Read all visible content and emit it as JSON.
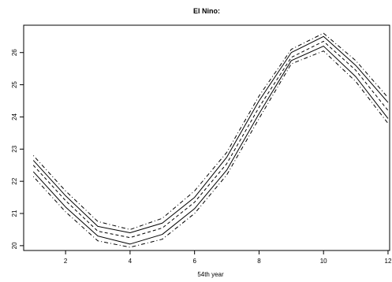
{
  "chart_data": {
    "type": "line",
    "title": "El Nino:",
    "xlabel": "54th year",
    "ylabel": "",
    "x": [
      1,
      2,
      3,
      4,
      5,
      6,
      7,
      8,
      9,
      10,
      11,
      12
    ],
    "xlim": [
      0.7,
      12.05
    ],
    "ylim": [
      19.85,
      26.85
    ],
    "xticks": [
      2,
      4,
      6,
      8,
      10,
      12
    ],
    "yticks": [
      20,
      21,
      22,
      23,
      24,
      25,
      26
    ],
    "grid": false,
    "series": [
      {
        "line_style": "dotdash",
        "color": "#000000",
        "values": [
          22.8,
          21.7,
          20.75,
          20.5,
          20.85,
          21.7,
          22.9,
          24.65,
          26.1,
          26.6,
          25.75,
          24.6
        ]
      },
      {
        "line_style": "solid",
        "color": "#000000",
        "values": [
          22.65,
          21.55,
          20.6,
          20.4,
          20.7,
          21.5,
          22.75,
          24.5,
          26.0,
          26.5,
          25.6,
          24.45
        ]
      },
      {
        "line_style": "dashed",
        "color": "#000000",
        "values": [
          22.5,
          21.4,
          20.45,
          20.25,
          20.55,
          21.35,
          22.55,
          24.3,
          25.85,
          26.35,
          25.45,
          24.2
        ]
      },
      {
        "line_style": "solid",
        "color": "#000000",
        "values": [
          22.3,
          21.2,
          20.3,
          20.05,
          20.35,
          21.15,
          22.35,
          24.1,
          25.75,
          26.2,
          25.25,
          23.95
        ]
      },
      {
        "line_style": "dotdash",
        "color": "#000000",
        "values": [
          22.15,
          21.05,
          20.15,
          19.95,
          20.2,
          21.0,
          22.2,
          23.95,
          25.65,
          26.05,
          25.1,
          23.8
        ]
      }
    ]
  }
}
